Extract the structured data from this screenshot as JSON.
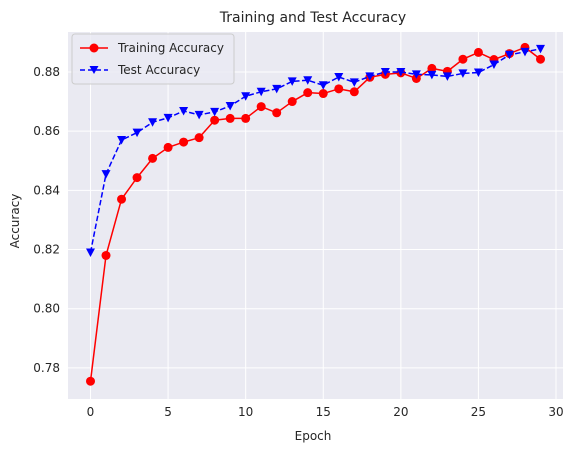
{
  "chart_data": {
    "type": "line",
    "title": "Training and Test Accuracy",
    "xlabel": "Epoch",
    "ylabel": "Accuracy",
    "xlim": [
      -1.45,
      30.45
    ],
    "ylim": [
      0.7695,
      0.8935
    ],
    "xticks": [
      0,
      5,
      10,
      15,
      20,
      25,
      30
    ],
    "yticks": [
      0.78,
      0.8,
      0.82,
      0.84,
      0.86,
      0.88
    ],
    "ytick_labels": [
      "0.78",
      "0.80",
      "0.82",
      "0.84",
      "0.86",
      "0.88"
    ],
    "grid": true,
    "background": "#eaeaf2",
    "legend_position": "upper left",
    "x": [
      0,
      1,
      2,
      3,
      4,
      5,
      6,
      7,
      8,
      9,
      10,
      11,
      12,
      13,
      14,
      15,
      16,
      17,
      18,
      19,
      20,
      21,
      22,
      23,
      24,
      25,
      26,
      27,
      28,
      29
    ],
    "series": [
      {
        "name": "Training Accuracy",
        "color": "#ff0000",
        "line_style": "solid",
        "marker": "circle",
        "values": [
          0.7755,
          0.818,
          0.837,
          0.8443,
          0.8508,
          0.8545,
          0.8563,
          0.8578,
          0.8637,
          0.8643,
          0.8643,
          0.8683,
          0.8662,
          0.87,
          0.873,
          0.8727,
          0.8743,
          0.8733,
          0.8782,
          0.8792,
          0.8797,
          0.8778,
          0.8812,
          0.8802,
          0.8843,
          0.8866,
          0.8842,
          0.8862,
          0.8883,
          0.8843
        ]
      },
      {
        "name": "Test Accuracy",
        "color": "#0000ff",
        "line_style": "dashed",
        "marker": "triangle-down",
        "values": [
          0.819,
          0.8455,
          0.857,
          0.8595,
          0.863,
          0.8645,
          0.8668,
          0.8655,
          0.8665,
          0.8685,
          0.8718,
          0.8733,
          0.8743,
          0.8768,
          0.8772,
          0.8755,
          0.8783,
          0.8765,
          0.8785,
          0.88,
          0.88,
          0.8792,
          0.879,
          0.8785,
          0.8795,
          0.8798,
          0.8825,
          0.8858,
          0.8868,
          0.8878
        ]
      }
    ]
  }
}
